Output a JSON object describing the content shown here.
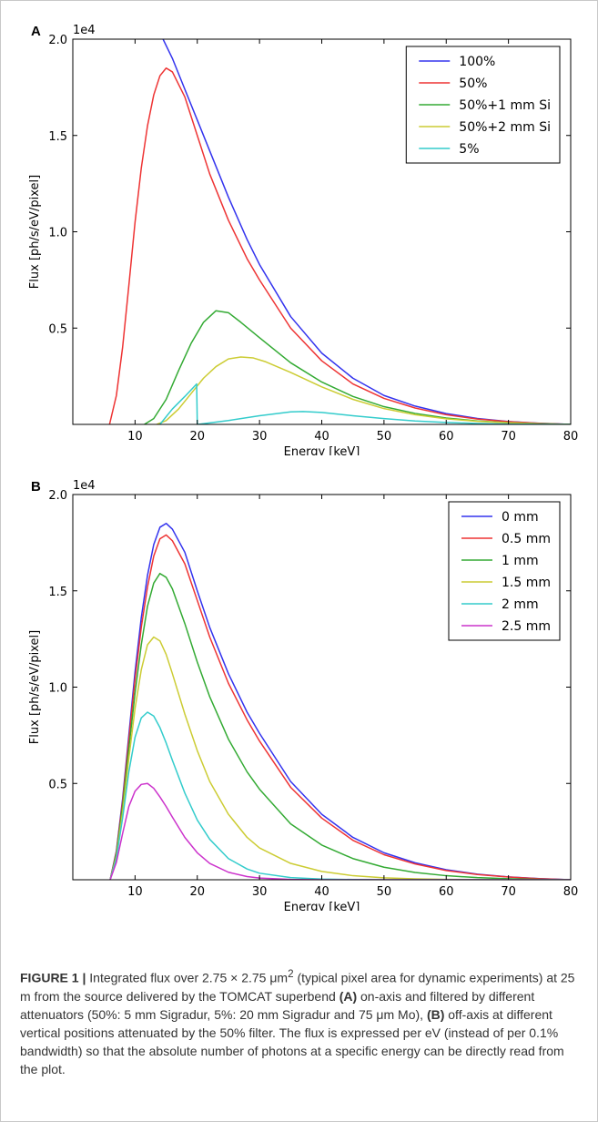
{
  "chart_data": [
    {
      "type": "line",
      "panel_label": "A",
      "xlabel": "Energy [keV]",
      "ylabel": "Flux [ph/s/eV/pixel]",
      "y_multiplier": "1e4",
      "xlim": [
        0,
        80
      ],
      "ylim": [
        0,
        20000
      ],
      "xticks": [
        10,
        20,
        30,
        40,
        50,
        60,
        70,
        80
      ],
      "yticks": [
        5000,
        10000,
        15000,
        20000
      ],
      "ytick_labels": [
        "0.5",
        "1.0",
        "1.5",
        "2.0"
      ],
      "legend_position": "top-right",
      "grid": false,
      "series": [
        {
          "name": "100%",
          "color": "#3333ee",
          "x": [
            14.5,
            16,
            18,
            20,
            22,
            25,
            28,
            30,
            35,
            40,
            45,
            50,
            55,
            60,
            65,
            70,
            75,
            80
          ],
          "y": [
            20000,
            19000,
            17400,
            15800,
            14200,
            11800,
            9600,
            8300,
            5600,
            3700,
            2400,
            1500,
            950,
            560,
            310,
            150,
            60,
            0
          ]
        },
        {
          "name": "50%",
          "color": "#ee3333",
          "x": [
            5.9,
            7,
            8,
            9,
            10,
            11,
            12,
            13,
            14,
            15,
            16,
            18,
            20,
            22,
            25,
            28,
            30,
            35,
            40,
            45,
            50,
            55,
            60,
            65,
            70,
            75,
            80
          ],
          "y": [
            0,
            1500,
            4000,
            7200,
            10500,
            13300,
            15500,
            17100,
            18100,
            18500,
            18300,
            17000,
            15000,
            13000,
            10600,
            8600,
            7500,
            5000,
            3300,
            2100,
            1350,
            850,
            500,
            280,
            140,
            55,
            0
          ]
        },
        {
          "name": "50%+1 mm Si",
          "color": "#33aa33",
          "x": [
            11.5,
            13,
            15,
            17,
            19,
            21,
            23,
            25,
            27,
            30,
            35,
            40,
            45,
            50,
            55,
            60,
            65,
            70,
            75,
            80
          ],
          "y": [
            0,
            300,
            1300,
            2800,
            4200,
            5300,
            5900,
            5800,
            5300,
            4500,
            3200,
            2200,
            1450,
            920,
            570,
            330,
            180,
            90,
            35,
            0
          ]
        },
        {
          "name": "50%+2 mm Si",
          "color": "#cccc33",
          "x": [
            13.5,
            15,
            17,
            19,
            21,
            23,
            25,
            27,
            29,
            31,
            35,
            40,
            45,
            50,
            55,
            60,
            65,
            70,
            75,
            80
          ],
          "y": [
            0,
            200,
            800,
            1600,
            2400,
            3000,
            3400,
            3500,
            3450,
            3250,
            2700,
            1950,
            1300,
            820,
            500,
            290,
            160,
            80,
            30,
            0
          ]
        },
        {
          "name": "5%",
          "color": "#33cccc",
          "x": [
            14,
            16,
            18,
            19.9,
            20,
            20.1,
            25,
            30,
            35,
            37,
            40,
            45,
            50,
            55,
            60,
            65,
            70,
            75,
            80
          ],
          "y": [
            0,
            800,
            1450,
            2100,
            0,
            0,
            200,
            450,
            650,
            670,
            620,
            450,
            300,
            180,
            100,
            50,
            20,
            5,
            0
          ]
        }
      ]
    },
    {
      "type": "line",
      "panel_label": "B",
      "xlabel": "Energy [keV]",
      "ylabel": "Flux [ph/s/eV/pixel]",
      "y_multiplier": "1e4",
      "xlim": [
        0,
        80
      ],
      "ylim": [
        0,
        20000
      ],
      "xticks": [
        10,
        20,
        30,
        40,
        50,
        60,
        70,
        80
      ],
      "yticks": [
        5000,
        10000,
        15000,
        20000
      ],
      "ytick_labels": [
        "0.5",
        "1.0",
        "1.5",
        "2.0"
      ],
      "legend_position": "top-right",
      "grid": false,
      "series": [
        {
          "name": "0 mm",
          "color": "#3333ee",
          "x": [
            6,
            7,
            8,
            9,
            10,
            11,
            12,
            13,
            14,
            15,
            16,
            18,
            20,
            22,
            25,
            28,
            30,
            35,
            40,
            45,
            50,
            55,
            60,
            65,
            70,
            75,
            80
          ],
          "y": [
            0,
            1500,
            4200,
            7500,
            10800,
            13600,
            15800,
            17400,
            18300,
            18500,
            18200,
            17000,
            15000,
            13100,
            10700,
            8700,
            7600,
            5100,
            3400,
            2200,
            1400,
            880,
            520,
            290,
            150,
            60,
            0
          ]
        },
        {
          "name": "0.5 mm",
          "color": "#ee3333",
          "x": [
            6,
            7,
            8,
            9,
            10,
            11,
            12,
            13,
            14,
            15,
            16,
            18,
            20,
            22,
            25,
            28,
            30,
            35,
            40,
            45,
            50,
            55,
            60,
            65,
            70,
            75,
            80
          ],
          "y": [
            0,
            1450,
            4050,
            7250,
            10400,
            13100,
            15200,
            16800,
            17700,
            17900,
            17600,
            16400,
            14500,
            12600,
            10200,
            8300,
            7200,
            4800,
            3200,
            2050,
            1300,
            820,
            480,
            270,
            140,
            55,
            0
          ]
        },
        {
          "name": "1 mm",
          "color": "#33aa33",
          "x": [
            6,
            7,
            8,
            9,
            10,
            11,
            12,
            13,
            14,
            15,
            16,
            18,
            20,
            22,
            25,
            28,
            30,
            35,
            40,
            45,
            50,
            55,
            60,
            65,
            70,
            75,
            80
          ],
          "y": [
            0,
            1350,
            3800,
            6800,
            9700,
            12200,
            14200,
            15400,
            15900,
            15700,
            15100,
            13300,
            11300,
            9500,
            7300,
            5600,
            4700,
            2900,
            1800,
            1100,
            650,
            380,
            210,
            110,
            55,
            20,
            0
          ]
        },
        {
          "name": "1.5 mm",
          "color": "#cccc33",
          "x": [
            6,
            7,
            8,
            9,
            10,
            11,
            12,
            13,
            14,
            15,
            16,
            18,
            20,
            22,
            25,
            28,
            30,
            35,
            40,
            45,
            50,
            55,
            60,
            65,
            70,
            75,
            80
          ],
          "y": [
            0,
            1200,
            3500,
            6300,
            8900,
            10900,
            12200,
            12600,
            12400,
            11700,
            10700,
            8600,
            6700,
            5100,
            3400,
            2200,
            1650,
            850,
            430,
            210,
            100,
            45,
            20,
            8,
            3,
            1,
            0
          ]
        },
        {
          "name": "2 mm",
          "color": "#33cccc",
          "x": [
            6,
            7,
            8,
            9,
            10,
            11,
            12,
            13,
            14,
            15,
            16,
            18,
            20,
            22,
            25,
            28,
            30,
            35,
            40,
            45,
            50,
            55,
            60,
            65,
            70,
            75,
            80
          ],
          "y": [
            0,
            1100,
            3200,
            5600,
            7400,
            8400,
            8700,
            8500,
            7900,
            7100,
            6200,
            4500,
            3100,
            2100,
            1100,
            560,
            340,
            110,
            35,
            10,
            3,
            1,
            0,
            0,
            0,
            0,
            0
          ]
        },
        {
          "name": "2.5 mm",
          "color": "#cc33cc",
          "x": [
            6,
            7,
            8,
            9,
            10,
            11,
            12,
            13,
            14,
            15,
            16,
            18,
            20,
            22,
            25,
            28,
            30,
            35,
            40,
            45,
            50,
            55,
            60,
            65,
            70,
            75,
            80
          ],
          "y": [
            0,
            900,
            2400,
            3800,
            4600,
            4950,
            5000,
            4750,
            4300,
            3800,
            3250,
            2200,
            1400,
            850,
            390,
            165,
            90,
            18,
            3,
            0,
            0,
            0,
            0,
            0,
            0,
            0,
            0
          ]
        }
      ]
    }
  ],
  "caption": {
    "label": "FIGURE 1 |",
    "text_1": " Integrated flux over 2.75 × 2.75 μm",
    "sup": "2",
    "text_2": " (typical pixel area for dynamic experiments) at 25 m from the source delivered by the TOMCAT superbend ",
    "bold_a": "(A)",
    "text_3": " on-axis and filtered by different attenuators (50%: 5 mm Sigradur, 5%: 20 mm Sigradur and 75 μm Mo), ",
    "bold_b": "(B)",
    "text_4": " off-axis at different vertical positions attenuated by the 50% filter. The flux is expressed per eV (instead of per 0.1% bandwidth) so that the absolute number of photons at a specific energy can be directly read from the plot."
  }
}
